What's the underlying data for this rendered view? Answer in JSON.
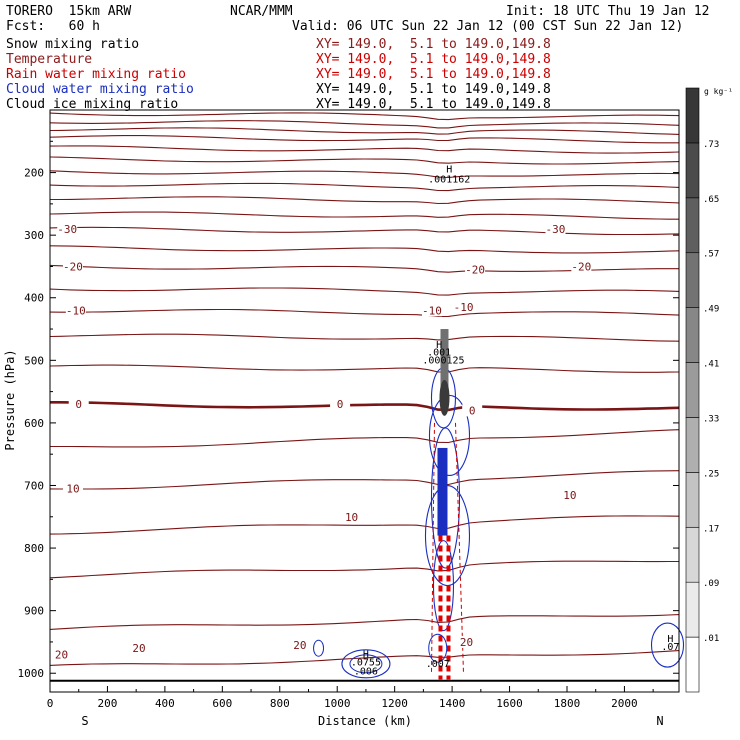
{
  "header": {
    "model": "TORERO  15km ARW",
    "org": "NCAR/MMM",
    "init": "Init: 18 UTC Thu 19 Jan 12",
    "fcst": "Fcst:   60 h",
    "valid": "Valid: 06 UTC Sun 22 Jan 12 (00 CST Sun 22 Jan 12)"
  },
  "fields": [
    {
      "name": "Snow mixing ratio",
      "xy": "",
      "color": "#000000"
    },
    {
      "name": "Temperature",
      "xy": "XY= 149.0,  5.1 to 149.0,149.8",
      "color": "#8b1a1a"
    },
    {
      "name": "Rain water mixing ratio",
      "xy": "XY= 149.0,  5.1 to 149.0,149.8",
      "color": "#cc0000"
    },
    {
      "name": "Cloud water mixing ratio",
      "xy": "XY= 149.0,  5.1 to 149.0,149.8",
      "color": "#1a2ec0"
    },
    {
      "name": "Cloud ice mixing ratio",
      "xy": "XY= 149.0,  5.1 to 149.0,149.8",
      "color": "#000000"
    }
  ],
  "snow_xy": "XY= 149.0,  5.1 to 149.0,149.8",
  "chart_data": {
    "type": "contour",
    "xlabel": "Distance (km)",
    "ylabel": "Pressure (hPa)",
    "xlim": [
      0,
      2190
    ],
    "ylim": [
      1030,
      100
    ],
    "x_ticks": [
      0,
      200,
      400,
      600,
      800,
      1000,
      1200,
      1400,
      1600,
      1800,
      2000
    ],
    "y_ticks": [
      200,
      300,
      400,
      500,
      600,
      700,
      800,
      900,
      1000
    ],
    "left_end_label": "S",
    "right_end_label": "N",
    "temperature_contours": [
      {
        "p_left": 105,
        "label": ""
      },
      {
        "p_left": 118,
        "label": ""
      },
      {
        "p_left": 130,
        "label": ""
      },
      {
        "p_left": 143,
        "label": ""
      },
      {
        "p_left": 160,
        "label": ""
      },
      {
        "p_left": 178,
        "label": ""
      },
      {
        "p_left": 198,
        "label": ""
      },
      {
        "p_left": 218,
        "label": ""
      },
      {
        "p_left": 240,
        "label": ""
      },
      {
        "p_left": 265,
        "label": ""
      },
      {
        "p_left": 290,
        "label": "-30"
      },
      {
        "p_left": 320,
        "label": ""
      },
      {
        "p_left": 350,
        "label": "-20"
      },
      {
        "p_left": 385,
        "label": ""
      },
      {
        "p_left": 420,
        "label": "-10"
      },
      {
        "p_left": 460,
        "label": ""
      },
      {
        "p_left": 510,
        "label": ""
      },
      {
        "p_left": 570,
        "label": "0",
        "bold": true
      },
      {
        "p_left": 640,
        "label": ""
      },
      {
        "p_left": 705,
        "label": "10"
      },
      {
        "p_left": 775,
        "label": ""
      },
      {
        "p_left": 845,
        "label": ""
      },
      {
        "p_left": 930,
        "label": "20"
      },
      {
        "p_left": 990,
        "label": ""
      }
    ],
    "temperature_labels": [
      {
        "x": 60,
        "p": 290,
        "text": "-30"
      },
      {
        "x": 1760,
        "p": 290,
        "text": "-30"
      },
      {
        "x": 80,
        "p": 350,
        "text": "-20"
      },
      {
        "x": 1480,
        "p": 355,
        "text": "-20"
      },
      {
        "x": 1850,
        "p": 350,
        "text": "-20"
      },
      {
        "x": 90,
        "p": 420,
        "text": "-10"
      },
      {
        "x": 1330,
        "p": 420,
        "text": "-10"
      },
      {
        "x": 1440,
        "p": 415,
        "text": "-10"
      },
      {
        "x": 100,
        "p": 570,
        "text": "0"
      },
      {
        "x": 1010,
        "p": 570,
        "text": "0"
      },
      {
        "x": 1470,
        "p": 580,
        "text": "0"
      },
      {
        "x": 80,
        "p": 705,
        "text": "10"
      },
      {
        "x": 1050,
        "p": 750,
        "text": "10"
      },
      {
        "x": 1810,
        "p": 715,
        "text": "10"
      },
      {
        "x": 40,
        "p": 970,
        "text": "20"
      },
      {
        "x": 310,
        "p": 960,
        "text": "20"
      },
      {
        "x": 870,
        "p": 955,
        "text": "20"
      },
      {
        "x": 1450,
        "p": 950,
        "text": "20"
      }
    ],
    "annotations": [
      {
        "x": 1390,
        "p": 200,
        "text": "H"
      },
      {
        "x": 1390,
        "p": 216,
        "text": ".001162"
      },
      {
        "x": 1355,
        "p": 480,
        "text": "H"
      },
      {
        "x": 1355,
        "p": 492,
        "text": ".001"
      },
      {
        "x": 1370,
        "p": 505,
        "text": ".000125"
      },
      {
        "x": 1100,
        "p": 975,
        "text": "H"
      },
      {
        "x": 1100,
        "p": 988,
        "text": ".0755"
      },
      {
        "x": 1100,
        "p": 1002,
        "text": ".006"
      },
      {
        "x": 1350,
        "p": 990,
        "text": ".007"
      },
      {
        "x": 2160,
        "p": 950,
        "text": "H"
      },
      {
        "x": 2160,
        "p": 963,
        "text": ".07"
      }
    ],
    "colorbar": {
      "unit": "g kg⁻¹",
      "levels": [
        ".01",
        ".09",
        ".17",
        ".25",
        ".33",
        ".41",
        ".49",
        ".57",
        ".65",
        ".73"
      ]
    },
    "ground_pressure": 1012
  }
}
